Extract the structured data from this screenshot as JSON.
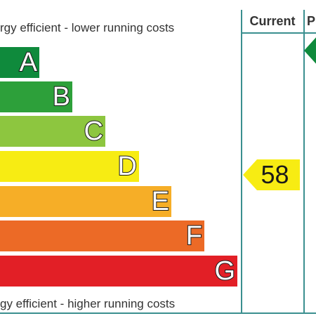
{
  "header": {
    "top_label": "rgy efficient - lower running costs",
    "bottom_label": "gy efficient - higher running costs",
    "col_current": "Current",
    "col_potential": "P"
  },
  "bands": [
    {
      "letter": "A",
      "color": "#0f8a3c"
    },
    {
      "letter": "B",
      "color": "#2da03a"
    },
    {
      "letter": "C",
      "color": "#8dc63f"
    },
    {
      "letter": "D",
      "color": "#f7ec13"
    },
    {
      "letter": "E",
      "color": "#f6ae27"
    },
    {
      "letter": "F",
      "color": "#ec6a26"
    },
    {
      "letter": "G",
      "color": "#e21f26"
    }
  ],
  "current": {
    "value": "58",
    "band": "D",
    "color": "#f7ec13"
  },
  "potential": {
    "band": "A",
    "color": "#0f8a3c"
  },
  "border_color": "#3a8f8f"
}
